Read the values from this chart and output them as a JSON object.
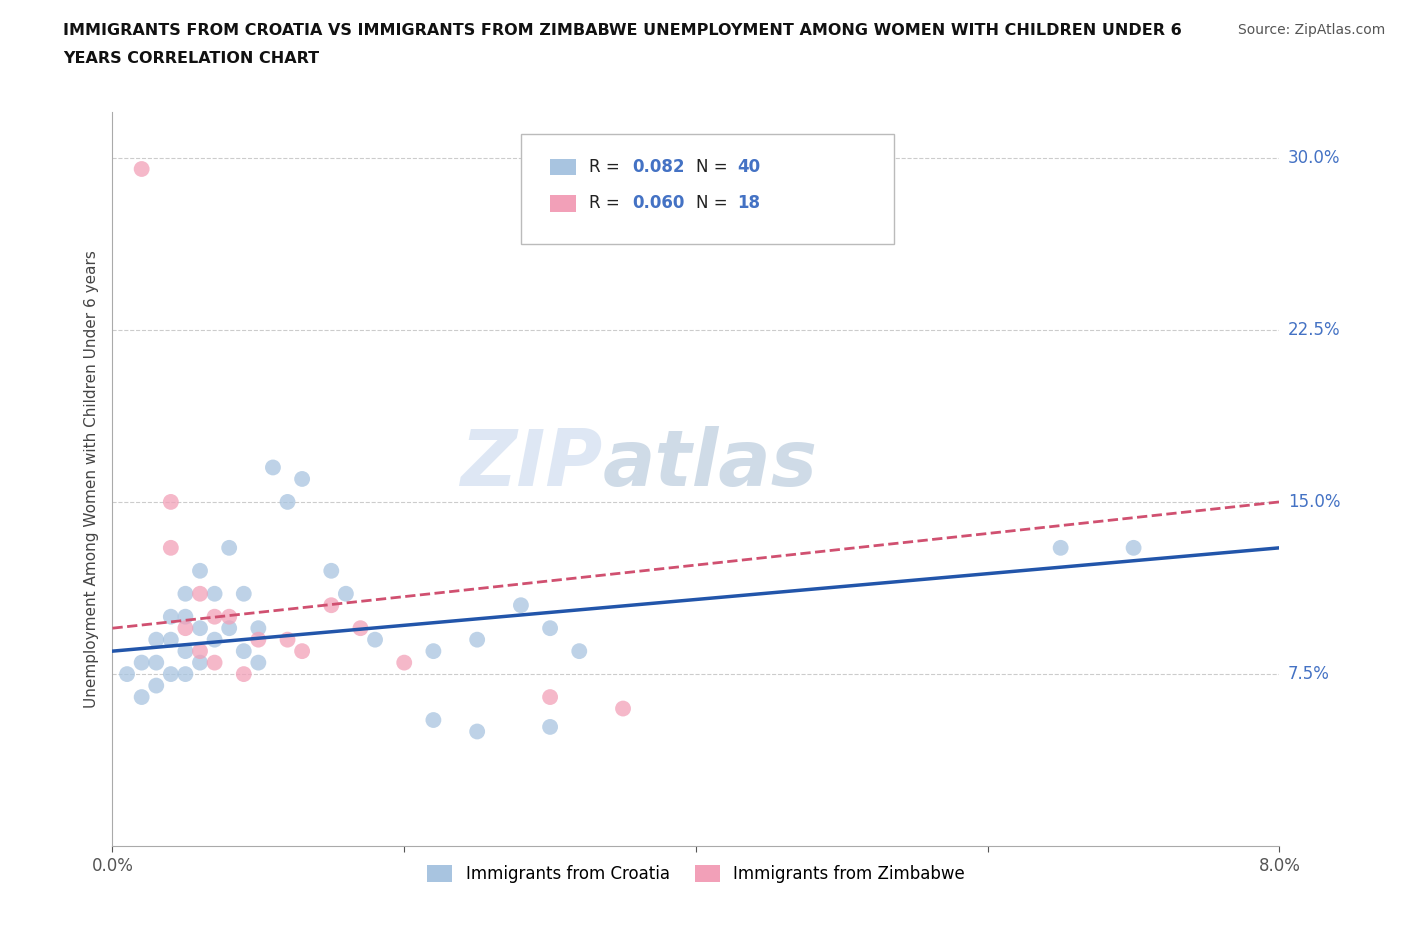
{
  "title_line1": "IMMIGRANTS FROM CROATIA VS IMMIGRANTS FROM ZIMBABWE UNEMPLOYMENT AMONG WOMEN WITH CHILDREN UNDER 6",
  "title_line2": "YEARS CORRELATION CHART",
  "source": "Source: ZipAtlas.com",
  "ylabel": "Unemployment Among Women with Children Under 6 years",
  "xlim": [
    0.0,
    0.08
  ],
  "ylim": [
    0.0,
    0.32
  ],
  "xtick_positions": [
    0.0,
    0.02,
    0.04,
    0.06,
    0.08
  ],
  "xticklabels": [
    "0.0%",
    "",
    "",
    "",
    "8.0%"
  ],
  "ytick_positions": [
    0.0,
    0.075,
    0.15,
    0.225,
    0.3
  ],
  "ytick_labels": [
    "",
    "7.5%",
    "15.0%",
    "22.5%",
    "30.0%"
  ],
  "croatia_R": "0.082",
  "croatia_N": "40",
  "zimbabwe_R": "0.060",
  "zimbabwe_N": "18",
  "croatia_color": "#a8c4e0",
  "zimbabwe_color": "#f2a0b8",
  "croatia_line_color": "#2255aa",
  "zimbabwe_line_color": "#d05070",
  "watermark_zip": "ZIP",
  "watermark_atlas": "atlas",
  "croatia_x": [
    0.001,
    0.002,
    0.002,
    0.003,
    0.003,
    0.003,
    0.004,
    0.004,
    0.004,
    0.005,
    0.005,
    0.005,
    0.005,
    0.006,
    0.006,
    0.006,
    0.007,
    0.007,
    0.008,
    0.008,
    0.009,
    0.009,
    0.01,
    0.01,
    0.011,
    0.012,
    0.013,
    0.015,
    0.016,
    0.018,
    0.022,
    0.025,
    0.03,
    0.032,
    0.022,
    0.025,
    0.028,
    0.03,
    0.065,
    0.07
  ],
  "croatia_y": [
    0.075,
    0.08,
    0.065,
    0.09,
    0.08,
    0.07,
    0.1,
    0.09,
    0.075,
    0.11,
    0.1,
    0.085,
    0.075,
    0.12,
    0.095,
    0.08,
    0.11,
    0.09,
    0.13,
    0.095,
    0.11,
    0.085,
    0.095,
    0.08,
    0.165,
    0.15,
    0.16,
    0.12,
    0.11,
    0.09,
    0.085,
    0.09,
    0.095,
    0.085,
    0.055,
    0.05,
    0.105,
    0.052,
    0.13,
    0.13
  ],
  "zimbabwe_x": [
    0.002,
    0.004,
    0.004,
    0.005,
    0.006,
    0.006,
    0.007,
    0.007,
    0.008,
    0.009,
    0.01,
    0.012,
    0.013,
    0.015,
    0.017,
    0.02,
    0.03,
    0.035
  ],
  "zimbabwe_y": [
    0.295,
    0.15,
    0.13,
    0.095,
    0.11,
    0.085,
    0.1,
    0.08,
    0.1,
    0.075,
    0.09,
    0.09,
    0.085,
    0.105,
    0.095,
    0.08,
    0.065,
    0.06
  ],
  "croatia_trend_x": [
    0.0,
    0.08
  ],
  "croatia_trend_y": [
    0.085,
    0.13
  ],
  "zimbabwe_trend_x": [
    0.0,
    0.08
  ],
  "zimbabwe_trend_y": [
    0.095,
    0.15
  ]
}
